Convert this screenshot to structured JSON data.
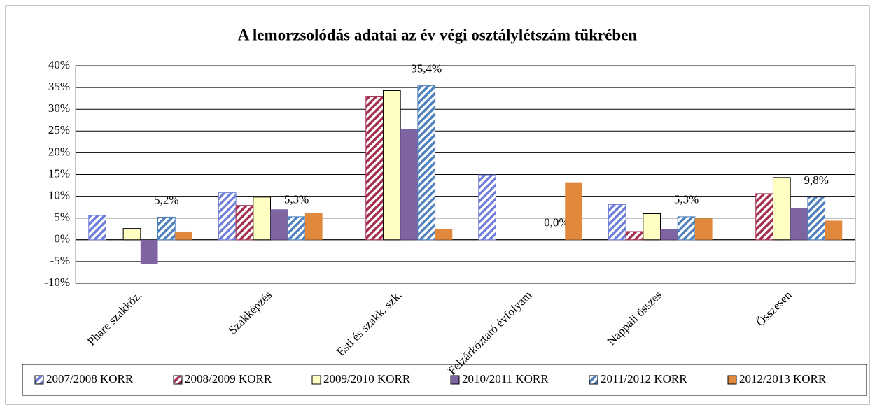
{
  "chart_data": {
    "type": "bar",
    "title": "A lemorzsolódás adatai az év végi osztálylétszám  tükrében",
    "categories": [
      "Phare szakköz.",
      "Szakképzés",
      "Esti és szakk. szk.",
      "Felzárkóztató évfolyam",
      "Nappali  összes",
      "Összesen"
    ],
    "series": [
      {
        "name": "2007/2008 KORR",
        "color": "#6f7fd8",
        "pattern": "hatch",
        "values": [
          5.6,
          10.8,
          null,
          14.9,
          8.1,
          null
        ]
      },
      {
        "name": "2008/2009 KORR",
        "color": "#a33050",
        "pattern": "hatch",
        "values": [
          null,
          7.9,
          33.0,
          null,
          1.9,
          10.6
        ]
      },
      {
        "name": "2009/2010 KORR",
        "color": "#ffffc4",
        "pattern": "solid",
        "values": [
          2.6,
          9.8,
          34.3,
          null,
          6.0,
          14.3
        ]
      },
      {
        "name": "2010/2011 KORR",
        "color": "#7f64a2",
        "pattern": "solid",
        "values": [
          -5.5,
          7.0,
          25.5,
          null,
          2.5,
          7.3
        ]
      },
      {
        "name": "2011/2012 KORR",
        "color": "#4f81bd",
        "pattern": "hatch",
        "values": [
          5.2,
          5.3,
          35.4,
          0.0,
          5.3,
          9.8
        ],
        "value_labels": [
          "5,2%",
          "5,3%",
          "35,4%",
          "0,0%",
          "5,3%",
          "9,8%"
        ]
      },
      {
        "name": "2012/2013 KORR",
        "color": "#e0883c",
        "pattern": "solid",
        "values": [
          1.9,
          6.2,
          2.5,
          13.2,
          4.9,
          4.4
        ]
      }
    ],
    "ylim": [
      -10,
      40
    ],
    "yticks": [
      {
        "value": -10,
        "label": "-10%"
      },
      {
        "value": -5,
        "label": "-5%"
      },
      {
        "value": 0,
        "label": "0%"
      },
      {
        "value": 5,
        "label": "5%"
      },
      {
        "value": 10,
        "label": "10%"
      },
      {
        "value": 15,
        "label": "15%"
      },
      {
        "value": 20,
        "label": "20%"
      },
      {
        "value": 25,
        "label": "25%"
      },
      {
        "value": 30,
        "label": "30%"
      },
      {
        "value": 35,
        "label": "35%"
      },
      {
        "value": 40,
        "label": "40%"
      }
    ],
    "grid": true,
    "legend": "bottom"
  }
}
